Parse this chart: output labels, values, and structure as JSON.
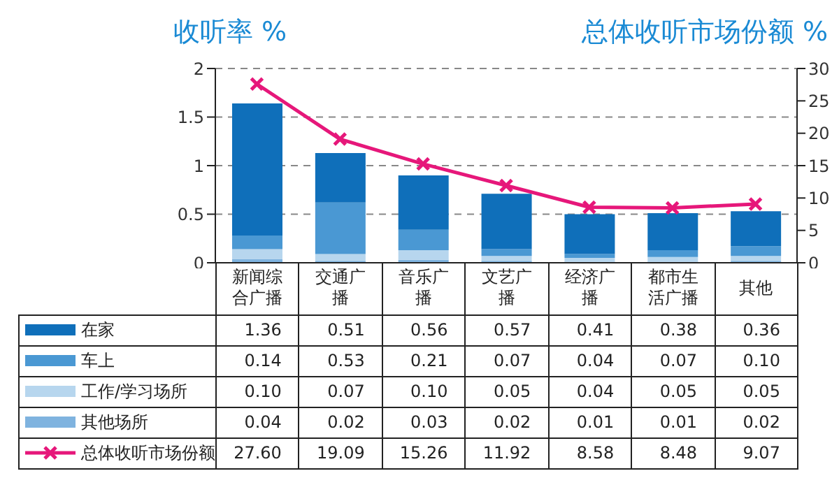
{
  "chart_data": {
    "type": "bar",
    "ylabel": "收听率 %",
    "y2label": "总体收听市场份额 %",
    "categories": [
      "新闻综合广播",
      "交通广播",
      "音乐广播",
      "文艺广播",
      "经济广播",
      "都市生活广播",
      "其他"
    ],
    "stacked": true,
    "ylim": [
      0,
      2
    ],
    "yticks": [
      0,
      0.5,
      1,
      1.5,
      2
    ],
    "y2lim": [
      0,
      30
    ],
    "y2ticks": [
      0,
      5,
      10,
      15,
      20,
      25,
      30
    ],
    "grid": "y",
    "legend": "bottom",
    "marker": "cross",
    "line_style": "solid",
    "series": [
      {
        "name": "其他场所",
        "color": "#7fb3df",
        "values": [
          0.04,
          0.02,
          0.03,
          0.02,
          0.01,
          0.01,
          0.02
        ],
        "value_labels": [
          "0.04",
          "0.02",
          "0.03",
          "0.02",
          "0.01",
          "0.01",
          "0.02"
        ]
      },
      {
        "name": "工作/学习场所",
        "color": "#b7d6ee",
        "values": [
          0.1,
          0.07,
          0.1,
          0.05,
          0.04,
          0.05,
          0.05
        ],
        "value_labels": [
          "0.10",
          "0.07",
          "0.10",
          "0.05",
          "0.04",
          "0.05",
          "0.05"
        ]
      },
      {
        "name": "车上",
        "color": "#4a98d3",
        "values": [
          0.14,
          0.53,
          0.21,
          0.07,
          0.04,
          0.07,
          0.1
        ],
        "value_labels": [
          "0.14",
          "0.53",
          "0.21",
          "0.07",
          "0.04",
          "0.07",
          "0.10"
        ]
      },
      {
        "name": "在家",
        "color": "#0f6fba",
        "values": [
          1.36,
          0.51,
          0.56,
          0.57,
          0.41,
          0.38,
          0.36
        ],
        "value_labels": [
          "1.36",
          "0.51",
          "0.56",
          "0.57",
          "0.41",
          "0.38",
          "0.36"
        ]
      },
      {
        "name": "总体收听市场份额",
        "type": "line",
        "axis": "y2",
        "color": "#e6177a",
        "values": [
          27.6,
          19.09,
          15.26,
          11.92,
          8.58,
          8.48,
          9.07
        ],
        "value_labels": [
          "27.60",
          "19.09",
          "15.26",
          "11.92",
          "8.58",
          "8.48",
          "9.07"
        ]
      }
    ]
  }
}
